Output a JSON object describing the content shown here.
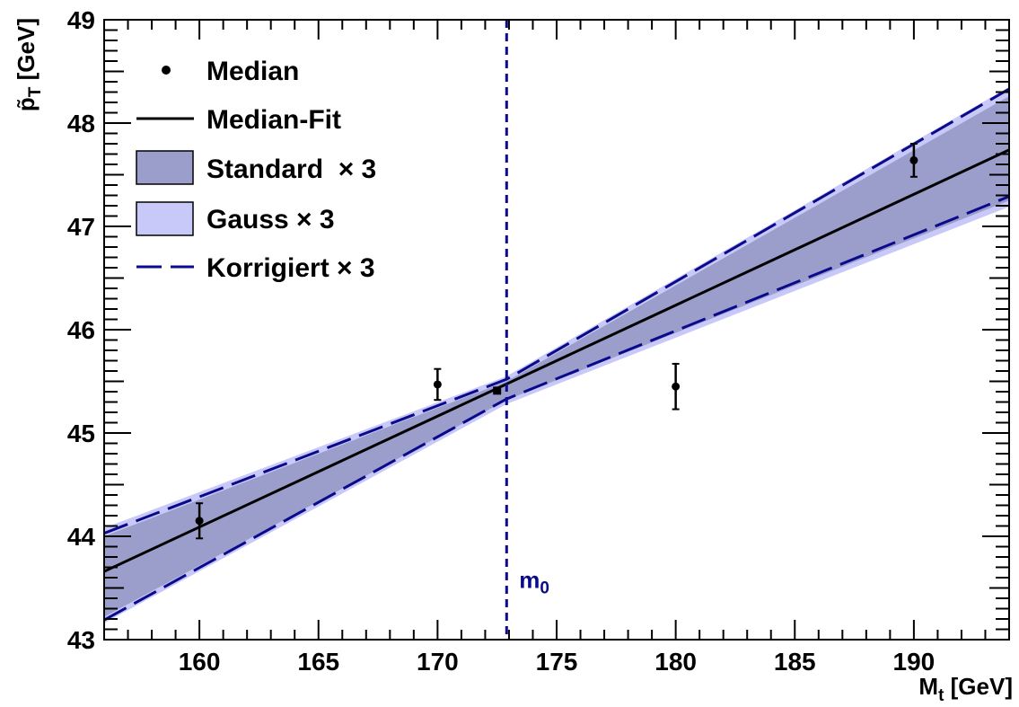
{
  "chart_data": {
    "type": "line",
    "xlabel": {
      "main": "M",
      "sub": "t",
      "unit": " [GeV]"
    },
    "ylabel": {
      "main": "p̃",
      "sub": "T",
      "unit": " [GeV]"
    },
    "xlim": [
      156,
      194
    ],
    "ylim": [
      43,
      49
    ],
    "xticks": [
      160,
      165,
      170,
      175,
      180,
      185,
      190
    ],
    "yticks": [
      43,
      44,
      45,
      46,
      47,
      48,
      49
    ],
    "grid": false,
    "legend_position": "top-left",
    "legend": [
      {
        "key": "median",
        "label": "Median"
      },
      {
        "key": "fit",
        "label": "Median-Fit"
      },
      {
        "key": "standard",
        "label": "Standard  × 3"
      },
      {
        "key": "gauss",
        "label": "Gauss × 3"
      },
      {
        "key": "korrigiert",
        "label": "Korrigiert × 3"
      }
    ],
    "median_points": [
      {
        "x": 160,
        "y": 44.15,
        "err": 0.17
      },
      {
        "x": 170,
        "y": 45.47,
        "err": 0.15
      },
      {
        "x": 180,
        "y": 45.45,
        "err": 0.22
      },
      {
        "x": 190,
        "y": 47.64,
        "err": 0.16
      }
    ],
    "reference_point": {
      "x": 172.5,
      "y": 45.41
    },
    "fit_line": {
      "x": [
        156,
        194
      ],
      "y": [
        43.66,
        47.74
      ]
    },
    "standard_band": {
      "x": [
        156,
        172.9,
        194
      ],
      "upper": [
        44.0,
        45.5,
        48.26
      ],
      "lower": [
        43.22,
        45.32,
        47.25
      ]
    },
    "gauss_band": {
      "x": [
        156,
        172.9,
        194
      ],
      "upper": [
        44.08,
        45.55,
        48.35
      ],
      "lower": [
        43.16,
        45.28,
        47.19
      ]
    },
    "korrigiert_band": {
      "x": [
        156,
        172.9,
        194
      ],
      "upper": [
        44.03,
        45.52,
        48.33
      ],
      "lower": [
        43.19,
        45.33,
        47.29
      ]
    },
    "reference_line": {
      "x": 172.9,
      "label_main": "m",
      "label_sub": "0"
    },
    "colors": {
      "standard": "#9b9dca",
      "gauss": "#c9c9f9",
      "korrigiert": "#0a0a8c",
      "reference": "#0a0a8c",
      "fit": "#000000"
    }
  }
}
